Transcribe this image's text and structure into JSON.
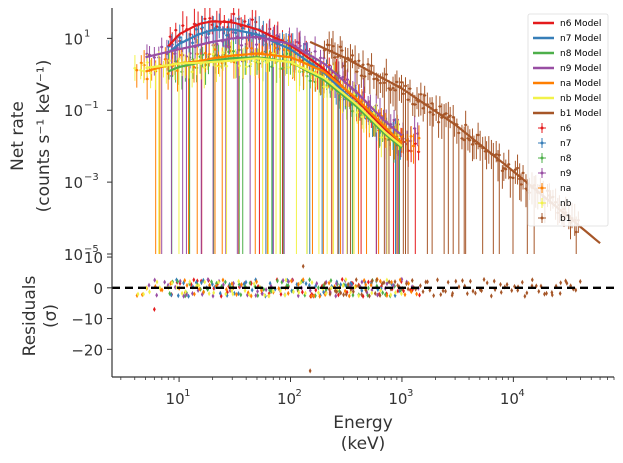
{
  "chart_data": [
    {
      "type": "scatter",
      "panel": "top",
      "ylabel_line1": "Net rate",
      "ylabel_line2": "(counts s⁻¹ keV⁻¹)",
      "xscale": "log",
      "yscale": "log",
      "xlim": [
        2.5,
        80000
      ],
      "ylim": [
        1e-05,
        70
      ],
      "x_ticks": [
        {
          "value": 10,
          "label": "10",
          "exp": "1"
        },
        {
          "value": 100,
          "label": "10",
          "exp": "2"
        },
        {
          "value": 1000,
          "label": "10",
          "exp": "3"
        },
        {
          "value": 10000,
          "label": "10",
          "exp": "4"
        }
      ],
      "y_ticks": [
        {
          "value": 10,
          "label": "10",
          "exp": "1"
        },
        {
          "value": 0.1,
          "label": "10",
          "exp": "−1"
        },
        {
          "value": 0.001,
          "label": "10",
          "exp": "−3"
        },
        {
          "value": 1e-05,
          "label": "10",
          "exp": "−5"
        }
      ],
      "legend_position": "top-right",
      "models": [
        {
          "name": "n6 Model",
          "color": "#e41a1c",
          "x": [
            8,
            10,
            15,
            20,
            30,
            50,
            100,
            200,
            400,
            700,
            1000
          ],
          "y": [
            6,
            13,
            25,
            30,
            28,
            18,
            6.5,
            1.4,
            0.18,
            0.03,
            0.012
          ]
        },
        {
          "name": "n7 Model",
          "color": "#377eb8",
          "x": [
            8,
            10,
            15,
            20,
            30,
            50,
            100,
            200,
            400,
            700,
            1000
          ],
          "y": [
            4,
            7,
            13,
            17,
            18,
            13,
            5,
            1.1,
            0.14,
            0.025,
            0.01
          ]
        },
        {
          "name": "n8 Model",
          "color": "#4daf4a",
          "x": [
            8,
            10,
            15,
            20,
            30,
            50,
            100,
            200,
            400,
            700,
            1000
          ],
          "y": [
            1.2,
            1.6,
            2.1,
            2.4,
            2.8,
            3,
            2.2,
            0.7,
            0.12,
            0.022,
            0.009
          ]
        },
        {
          "name": "n9 Model",
          "color": "#984ea3",
          "x": [
            5,
            8,
            10,
            15,
            20,
            30,
            50,
            100,
            200,
            400,
            700,
            1000
          ],
          "y": [
            3,
            4.2,
            5,
            6.5,
            8,
            10,
            11,
            7,
            2,
            0.3,
            0.05,
            0.02
          ]
        },
        {
          "name": "na Model",
          "color": "#ff7f00",
          "x": [
            5,
            8,
            10,
            15,
            20,
            30,
            50,
            100,
            200,
            400,
            700,
            1000
          ],
          "y": [
            1.2,
            1.8,
            2,
            2.3,
            2.8,
            3.3,
            3.8,
            3,
            1.2,
            0.2,
            0.035,
            0.012
          ]
        },
        {
          "name": "nb Model",
          "color": "#f2f24a",
          "x": [
            5,
            8,
            10,
            15,
            20,
            30,
            50,
            100,
            200,
            400,
            700,
            1000
          ],
          "y": [
            1.5,
            1.8,
            2,
            2.1,
            2.2,
            2.4,
            2.8,
            2.2,
            0.8,
            0.14,
            0.025,
            0.01
          ]
        },
        {
          "name": "b1 Model",
          "color": "#a65628",
          "x": [
            150,
            300,
            1000,
            3000,
            10000,
            30000,
            60000
          ],
          "y": [
            8,
            3,
            0.4,
            0.04,
            0.002,
            0.00012,
            2e-05
          ]
        }
      ],
      "series": [
        {
          "name": "n6",
          "color": "#e41a1c",
          "xmin": 8,
          "xmax": 1500
        },
        {
          "name": "n7",
          "color": "#377eb8",
          "xmin": 8,
          "xmax": 1000
        },
        {
          "name": "n8",
          "color": "#4daf4a",
          "xmin": 8,
          "xmax": 1000
        },
        {
          "name": "n9",
          "color": "#984ea3",
          "xmin": 5,
          "xmax": 1500
        },
        {
          "name": "na",
          "color": "#ff7f00",
          "xmin": 4,
          "xmax": 1500
        },
        {
          "name": "nb",
          "color": "#f2f24a",
          "xmin": 4,
          "xmax": 1000
        },
        {
          "name": "b1",
          "color": "#a65628",
          "xmin": 200,
          "xmax": 40000
        }
      ]
    },
    {
      "type": "scatter",
      "panel": "bottom",
      "xlabel_line1": "Energy",
      "xlabel_line2": "(keV)",
      "ylabel_line1": "Residuals",
      "ylabel_line2": "(σ)",
      "xscale": "log",
      "xlim": [
        2.5,
        80000
      ],
      "ylim": [
        -29,
        11
      ],
      "y_ticks": [
        {
          "value": 10,
          "label": "10"
        },
        {
          "value": 0,
          "label": "0"
        },
        {
          "value": -10,
          "label": "−10"
        },
        {
          "value": -20,
          "label": "−20"
        }
      ],
      "zero_line": {
        "value": 0,
        "style": "dashed",
        "color": "#000000"
      },
      "outliers": [
        {
          "series": "b1",
          "x": 150,
          "y": -27
        },
        {
          "series": "n6",
          "x": 6,
          "y": -7
        },
        {
          "series": "b1",
          "x": 130,
          "y": 7
        }
      ]
    }
  ]
}
